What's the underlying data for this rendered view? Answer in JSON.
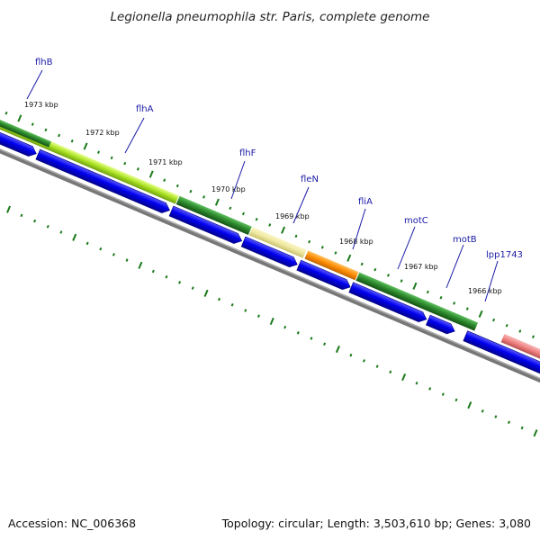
{
  "title": "Legionella pneumophila str. Paris, complete genome",
  "footer": {
    "accession": "Accession: NC_006368",
    "summary": "Topology: circular; Length: 3,503,610 bp; Genes: 3,080"
  },
  "kbp_labels": [
    "1973 kbp",
    "1972 kbp",
    "1971 kbp",
    "1970 kbp",
    "1969 kbp",
    "1968 kbp",
    "1967 kbp",
    "1966 kbp"
  ],
  "gene_labels": [
    "flhB",
    "flhA",
    "flhF",
    "fleN",
    "fliA",
    "motC",
    "motB",
    "lpp1743"
  ],
  "colors": {
    "gene_blue": "#0000ee",
    "cog_dark_green": "#2e8b2e",
    "cog_light_green": "#9acd32",
    "cog_pale_yellow": "#eee8a0",
    "cog_orange": "#ff8c00",
    "cog_pink": "#f08080",
    "backbone_gray": "#777777",
    "tick_green": "#1a7a1a",
    "label_blue": "#1a1aa6"
  }
}
